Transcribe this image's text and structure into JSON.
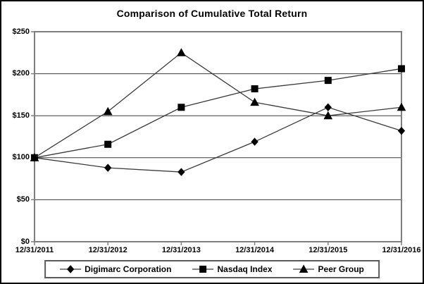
{
  "chart_data": {
    "type": "line",
    "title": "Comparison of Cumulative Total Return",
    "x": [
      "12/31/2011",
      "12/31/2012",
      "12/31/2013",
      "12/31/2014",
      "12/31/2015",
      "12/31/2016"
    ],
    "series": [
      {
        "name": "Digimarc Corporation",
        "marker": "diamond",
        "values": [
          100,
          88,
          83,
          119,
          160,
          132
        ]
      },
      {
        "name": "Nasdaq Index",
        "marker": "square",
        "values": [
          100,
          116,
          160,
          182,
          192,
          206
        ]
      },
      {
        "name": "Peer Group",
        "marker": "triangle",
        "values": [
          100,
          155,
          225,
          166,
          150,
          160
        ]
      }
    ],
    "ylim": [
      0,
      250
    ],
    "ytick_step": 50,
    "ytick_labels": [
      "$0",
      "$50",
      "$100",
      "$150",
      "$200",
      "$250"
    ],
    "xlabel": "",
    "ylabel": "",
    "grid": true,
    "legend_position": "bottom",
    "colors": {
      "line": "#3a3a3a",
      "marker": "#000000",
      "gridline": "#3a3a3a",
      "plot_border": "#7f7f7f",
      "figure_border": "#000000",
      "text": "#000000"
    }
  }
}
